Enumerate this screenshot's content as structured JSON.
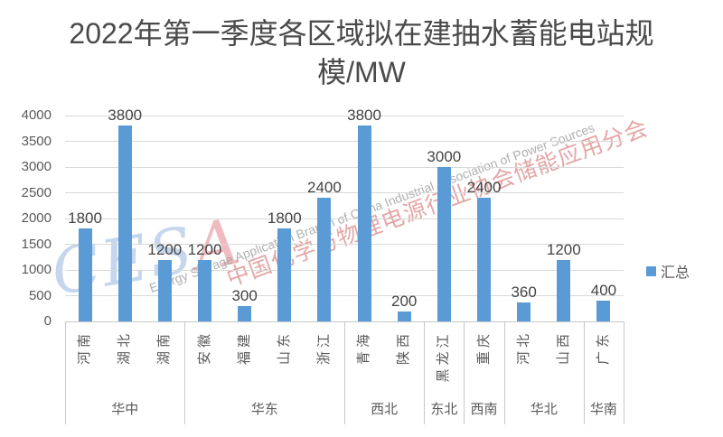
{
  "title": {
    "line1": "2022年第一季度各区域拟在建抽水蓄能电站规",
    "line2": "模/MW",
    "full": "2022年第一季度各区域拟在建抽水蓄能电站规模/MW"
  },
  "legend": {
    "label": "汇总",
    "marker_color": "#5B9BD5"
  },
  "watermark": {
    "logo_blue": "CES",
    "logo_red": "A",
    "line_cn": "中国化学与物理电源行业协会储能应用分会",
    "line_en": "Energy Storage Application Branch of China Industrial Association of Power Sources"
  },
  "colors": {
    "bar": "#5B9BD5",
    "gridline": "#D9D9D9",
    "axis_text": "#595959",
    "value_text": "#444444",
    "title_text": "#4A4A4A",
    "box_border": "#C9C9C9"
  },
  "chart_data": {
    "type": "bar",
    "title": "2022年第一季度各区域拟在建抽水蓄能电站规模/MW",
    "xlabel": "",
    "ylabel": "",
    "ylim": [
      0,
      4000
    ],
    "yticks": [
      0,
      500,
      1000,
      1500,
      2000,
      2500,
      3000,
      3500,
      4000
    ],
    "grid": "horizontal",
    "legend_position": "right",
    "series_name": "汇总",
    "bar_color": "#5B9BD5",
    "groups": [
      {
        "region": "华中",
        "provinces": [
          "河南",
          "湖北",
          "湖南"
        ],
        "values": [
          1800,
          3800,
          1200
        ]
      },
      {
        "region": "华东",
        "provinces": [
          "安徽",
          "福建",
          "山东",
          "浙江"
        ],
        "values": [
          1200,
          300,
          1800,
          2400
        ]
      },
      {
        "region": "西北",
        "provinces": [
          "青海",
          "陕西"
        ],
        "values": [
          3800,
          200
        ]
      },
      {
        "region": "东北",
        "provinces": [
          "黑龙江"
        ],
        "values": [
          3000
        ]
      },
      {
        "region": "西南",
        "provinces": [
          "重庆"
        ],
        "values": [
          2400
        ]
      },
      {
        "region": "华北",
        "provinces": [
          "河北",
          "山西"
        ],
        "values": [
          360,
          1200
        ]
      },
      {
        "region": "华南",
        "provinces": [
          "广东"
        ],
        "values": [
          400
        ]
      }
    ]
  }
}
